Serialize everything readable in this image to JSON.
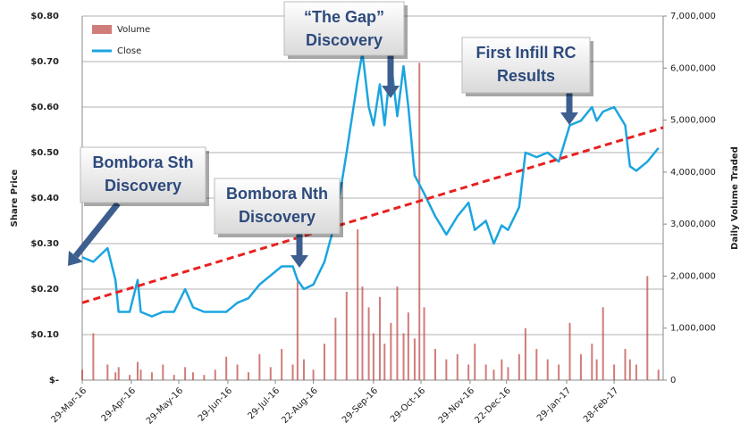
{
  "chart_data": {
    "type": "line-bar",
    "y_label": "Share Price",
    "y2_label": "Daily Volume Traded",
    "x": [
      "2016-03-29",
      "2016-04-05",
      "2016-04-14",
      "2016-04-19",
      "2016-04-21",
      "2016-04-28",
      "2016-05-03",
      "2016-05-05",
      "2016-05-12",
      "2016-05-19",
      "2016-05-26",
      "2016-06-02",
      "2016-06-07",
      "2016-06-14",
      "2016-06-21",
      "2016-06-28",
      "2016-07-05",
      "2016-07-12",
      "2016-07-19",
      "2016-07-26",
      "2016-08-02",
      "2016-08-09",
      "2016-08-12",
      "2016-08-16",
      "2016-08-22",
      "2016-08-29",
      "2016-09-05",
      "2016-09-12",
      "2016-09-19",
      "2016-09-22",
      "2016-09-26",
      "2016-09-29",
      "2016-10-03",
      "2016-10-06",
      "2016-10-10",
      "2016-10-14",
      "2016-10-18",
      "2016-10-21",
      "2016-10-25",
      "2016-10-28",
      "2016-10-31",
      "2016-11-07",
      "2016-11-14",
      "2016-11-21",
      "2016-11-28",
      "2016-12-02",
      "2016-12-09",
      "2016-12-14",
      "2016-12-19",
      "2016-12-23",
      "2016-12-30",
      "2017-01-03",
      "2017-01-10",
      "2017-01-17",
      "2017-01-24",
      "2017-01-31",
      "2017-02-07",
      "2017-02-14",
      "2017-02-17",
      "2017-02-21",
      "2017-02-28",
      "2017-03-07",
      "2017-03-10",
      "2017-03-14",
      "2017-03-21",
      "2017-03-28"
    ],
    "series": [
      {
        "name": "Volume",
        "color": "#c0504d",
        "axis": "y2",
        "kind": "bar",
        "values": [
          200000,
          900000,
          300000,
          150000,
          250000,
          100000,
          350000,
          200000,
          150000,
          300000,
          100000,
          250000,
          150000,
          100000,
          200000,
          450000,
          300000,
          150000,
          500000,
          250000,
          600000,
          300000,
          1900000,
          400000,
          200000,
          700000,
          1200000,
          1700000,
          2900000,
          1800000,
          1400000,
          900000,
          1600000,
          700000,
          1100000,
          1800000,
          900000,
          1300000,
          800000,
          6100000,
          1400000,
          600000,
          400000,
          500000,
          300000,
          700000,
          300000,
          200000,
          400000,
          250000,
          500000,
          1000000,
          600000,
          400000,
          300000,
          1100000,
          500000,
          700000,
          400000,
          1400000,
          300000,
          600000,
          400000,
          300000,
          2000000,
          200000
        ]
      },
      {
        "name": "Close",
        "color": "#1ba5e0",
        "axis": "y",
        "kind": "line",
        "values": [
          0.27,
          0.26,
          0.29,
          0.22,
          0.15,
          0.15,
          0.22,
          0.15,
          0.14,
          0.15,
          0.15,
          0.2,
          0.16,
          0.15,
          0.15,
          0.15,
          0.17,
          0.18,
          0.21,
          0.23,
          0.25,
          0.25,
          0.22,
          0.2,
          0.21,
          0.26,
          0.35,
          0.5,
          0.66,
          0.72,
          0.6,
          0.56,
          0.65,
          0.56,
          0.7,
          0.58,
          0.69,
          0.6,
          0.45,
          0.43,
          0.41,
          0.36,
          0.32,
          0.36,
          0.39,
          0.33,
          0.35,
          0.3,
          0.34,
          0.33,
          0.38,
          0.5,
          0.49,
          0.5,
          0.48,
          0.56,
          0.57,
          0.6,
          0.57,
          0.59,
          0.6,
          0.56,
          0.47,
          0.46,
          0.48,
          0.51
        ]
      }
    ],
    "trendline": {
      "x": [
        "2016-03-29",
        "2017-03-31"
      ],
      "values": [
        0.17,
        0.555
      ],
      "color": "#e8211f"
    },
    "annotations": [
      {
        "lines": [
          "Bombora Sth",
          "Discovery"
        ]
      },
      {
        "lines": [
          "Bombora Nth",
          "Discovery"
        ]
      },
      {
        "lines": [
          "“The Gap”",
          "Discovery"
        ]
      },
      {
        "lines": [
          "First Infill RC",
          "Results"
        ]
      }
    ],
    "xlim": [
      "2016-03-29",
      "2017-03-31"
    ],
    "xticks": [
      {
        "value": "2016-03-29",
        "label": "29-Mar-16"
      },
      {
        "value": "2016-04-29",
        "label": "29-Apr-16"
      },
      {
        "value": "2016-05-29",
        "label": "29-May-16"
      },
      {
        "value": "2016-06-29",
        "label": "29-Jun-16"
      },
      {
        "value": "2016-07-29",
        "label": "29-Jul-16"
      },
      {
        "value": "2016-08-22",
        "label": "22-Aug-16"
      },
      {
        "value": "2016-09-29",
        "label": "29-Sep-16"
      },
      {
        "value": "2016-10-29",
        "label": "29-Oct-16"
      },
      {
        "value": "2016-11-29",
        "label": "29-Nov-16"
      },
      {
        "value": "2016-12-22",
        "label": "22-Dec-16"
      },
      {
        "value": "2017-01-29",
        "label": "29-Jan-17"
      },
      {
        "value": "2017-02-28",
        "label": "28-Feb-17"
      }
    ],
    "ylim": [
      0,
      0.8
    ],
    "yticks": [
      {
        "value": 0,
        "label": "$-"
      },
      {
        "value": 0.1,
        "label": "$0.10"
      },
      {
        "value": 0.2,
        "label": "$0.20"
      },
      {
        "value": 0.3,
        "label": "$0.30"
      },
      {
        "value": 0.4,
        "label": "$0.40"
      },
      {
        "value": 0.5,
        "label": "$0.50"
      },
      {
        "value": 0.6,
        "label": "$0.60"
      },
      {
        "value": 0.7,
        "label": "$0.70"
      },
      {
        "value": 0.8,
        "label": "$0.80"
      }
    ],
    "y2lim": [
      0,
      7000000
    ],
    "y2ticks": [
      0,
      {
        "value": 1000000,
        "label": "1,000,000"
      },
      {
        "value": 2000000,
        "label": "2,000,000"
      },
      {
        "value": 3000000,
        "label": "3,000,000"
      },
      {
        "value": 4000000,
        "label": "4,000,000"
      },
      {
        "value": 5000000,
        "label": "5,000,000"
      },
      {
        "value": 6000000,
        "label": "6,000,000"
      },
      {
        "value": 7000000,
        "label": "7,000,000"
      }
    ],
    "grid": true,
    "legend": "top-left"
  }
}
